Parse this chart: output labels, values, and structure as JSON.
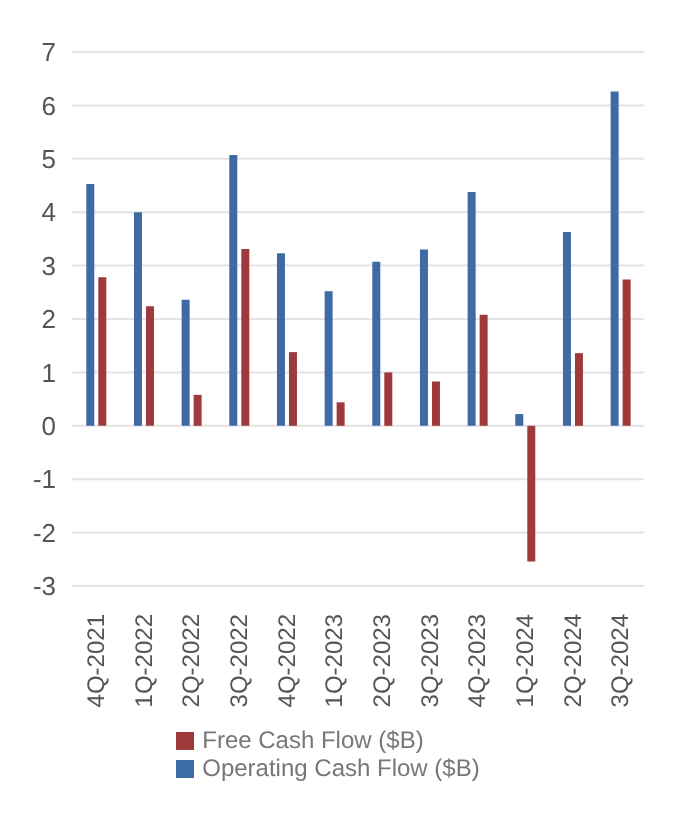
{
  "chart_data": {
    "type": "bar",
    "categories": [
      "4Q-2021",
      "1Q-2022",
      "2Q-2022",
      "3Q-2022",
      "4Q-2022",
      "1Q-2023",
      "2Q-2023",
      "3Q-2023",
      "4Q-2023",
      "1Q-2024",
      "2Q-2024",
      "3Q-2024"
    ],
    "series": [
      {
        "name": "Operating Cash Flow ($B)",
        "color": "#3d6ba3",
        "values": [
          4.53,
          4.0,
          2.36,
          5.07,
          3.23,
          2.52,
          3.07,
          3.3,
          4.38,
          0.22,
          3.63,
          6.26
        ]
      },
      {
        "name": "Free Cash Flow ($B)",
        "color": "#9e3a3a",
        "values": [
          2.78,
          2.24,
          0.58,
          3.31,
          1.38,
          0.44,
          1.0,
          0.83,
          2.08,
          -2.54,
          1.36,
          2.74
        ]
      }
    ],
    "ylim": [
      -3,
      7
    ],
    "yticks": [
      -3,
      -2,
      -1,
      0,
      1,
      2,
      3,
      4,
      5,
      6,
      7
    ],
    "grid": "y",
    "legend": "bottom"
  }
}
